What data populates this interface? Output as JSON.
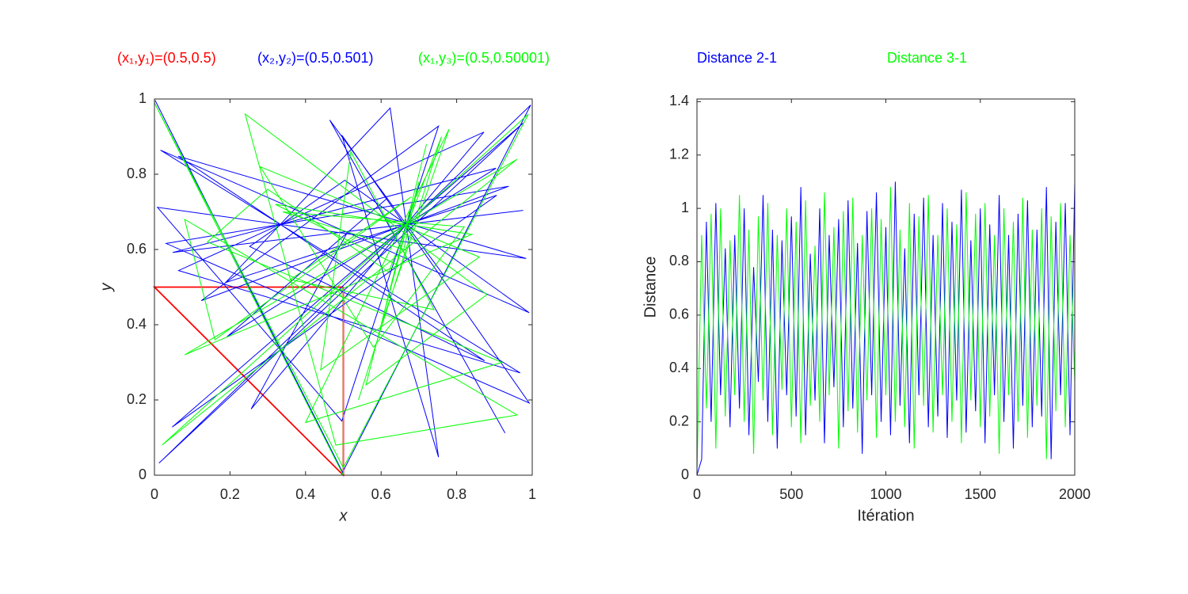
{
  "chart_data": [
    {
      "type": "line",
      "xlabel": "x",
      "ylabel": "y",
      "xlim": [
        0,
        1
      ],
      "ylim": [
        0,
        1
      ],
      "xticks": [
        0,
        0.2,
        0.4,
        0.6,
        0.8,
        1
      ],
      "yticks": [
        0,
        0.2,
        0.4,
        0.6,
        0.8,
        1
      ],
      "series": [
        {
          "name": "(x₁,y₁)=(0.5,0.5)",
          "color": "#ff0000",
          "x": [
            0.5,
            0.5,
            0,
            0.5
          ],
          "values": [
            0.5,
            0,
            0.5,
            0.5
          ]
        },
        {
          "name": "(x₂,y₂)=(0.5,0.501)",
          "color": "#0000ff",
          "x": [
            0.5,
            0.5,
            0.002,
            0.498,
            0.996,
            0.012,
            0.976,
            0.047,
            0.906,
            0.188,
            0.624,
            0.752,
            0.496,
            0.992,
            0.031,
            0.938,
            0.124,
            0.752,
            0.496,
            0.008,
            0.984,
            0.063,
            0.874,
            0.252,
            0.504,
            0.992,
            0.016,
            0.968,
            0.064,
            0.872,
            0.256,
            0.512,
            0.976,
            0.048,
            0.904,
            0.192,
            0.616,
            0.768,
            0.464,
            0.928
          ],
          "values": [
            0.501,
            0.002,
            0.996,
            0.008,
            0.984,
            0.032,
            0.936,
            0.128,
            0.744,
            0.512,
            0.976,
            0.048,
            0.904,
            0.192,
            0.616,
            0.768,
            0.464,
            0.928,
            0.144,
            0.712,
            0.576,
            0.848,
            0.304,
            0.608,
            0.784,
            0.432,
            0.864,
            0.272,
            0.544,
            0.912,
            0.176,
            0.648,
            0.704,
            0.592,
            0.816,
            0.368,
            0.736,
            0.528,
            0.944,
            0.112
          ]
        },
        {
          "name": "(x₁,y₃)=(0.5,0.50001)",
          "color": "#00ff00",
          "x": [
            0.5,
            0.5,
            2e-05,
            0.5,
            0.99,
            0.02,
            0.96,
            0.08,
            0.84,
            0.32,
            0.64,
            0.72,
            0.56,
            0.88,
            0.24,
            0.48,
            0.96,
            0.08,
            0.16,
            0.68,
            0.36,
            0.74,
            0.52,
            0.44,
            0.86,
            0.28,
            0.58,
            0.82,
            0.34,
            0.66,
            0.7,
            0.6,
            0.78,
            0.4,
            0.92,
            0.14,
            0.3,
            0.62,
            0.76,
            0.54
          ],
          "values": [
            0.50001,
            2e-05,
            0.99,
            0.02,
            0.96,
            0.08,
            0.84,
            0.32,
            0.64,
            0.72,
            0.56,
            0.88,
            0.24,
            0.48,
            0.96,
            0.08,
            0.16,
            0.68,
            0.36,
            0.74,
            0.52,
            0.44,
            0.86,
            0.28,
            0.58,
            0.82,
            0.34,
            0.66,
            0.7,
            0.6,
            0.78,
            0.4,
            0.92,
            0.14,
            0.3,
            0.62,
            0.76,
            0.54,
            0.9,
            0.2
          ]
        }
      ]
    },
    {
      "type": "line",
      "xlabel": "Itération",
      "ylabel": "Distance",
      "xlim": [
        0,
        2000
      ],
      "ylim": [
        0,
        1.41
      ],
      "xticks": [
        0,
        500,
        1000,
        1500,
        2000
      ],
      "yticks": [
        0,
        0.2,
        0.4,
        0.6,
        0.8,
        1,
        1.2,
        1.4
      ],
      "x": [
        0,
        25,
        50,
        75,
        100,
        125,
        150,
        175,
        200,
        225,
        250,
        275,
        300,
        325,
        350,
        375,
        400,
        425,
        450,
        475,
        500,
        525,
        550,
        575,
        600,
        625,
        650,
        675,
        700,
        725,
        750,
        775,
        800,
        825,
        850,
        875,
        900,
        925,
        950,
        975,
        1000,
        1025,
        1050,
        1075,
        1100,
        1125,
        1150,
        1175,
        1200,
        1225,
        1250,
        1275,
        1300,
        1325,
        1350,
        1375,
        1400,
        1425,
        1450,
        1475,
        1500,
        1525,
        1550,
        1575,
        1600,
        1625,
        1650,
        1675,
        1700,
        1725,
        1750,
        1775,
        1800,
        1825,
        1850,
        1875,
        1900,
        1925,
        1950,
        1975,
        2000
      ],
      "series": [
        {
          "name": "Distance 2-1",
          "color": "#0000ff",
          "values": [
            0,
            0.06,
            0.95,
            0.2,
            1.02,
            0.3,
            0.85,
            0.18,
            0.9,
            0.25,
            1.0,
            0.15,
            0.78,
            0.35,
            1.05,
            0.2,
            0.92,
            0.1,
            0.88,
            0.3,
            0.97,
            0.22,
            1.08,
            0.15,
            0.83,
            0.28,
            1.0,
            0.12,
            0.9,
            0.33,
            0.96,
            0.18,
            1.03,
            0.25,
            0.87,
            0.08,
            0.99,
            0.3,
            1.06,
            0.2,
            0.93,
            0.15,
            1.1,
            0.26,
            0.85,
            0.12,
            0.98,
            0.3,
            1.04,
            0.18,
            0.9,
            0.22,
            1.02,
            0.14,
            0.95,
            0.28,
            1.07,
            0.16,
            0.88,
            0.24,
            1.0,
            0.12,
            0.94,
            0.3,
            1.05,
            0.2,
            0.9,
            0.1,
            0.98,
            0.26,
            1.03,
            0.18,
            0.92,
            0.22,
            1.08,
            0.06,
            0.95,
            0.3,
            1.02,
            0.15,
            1.1
          ]
        },
        {
          "name": "Distance 3-1",
          "color": "#00ff00",
          "values": [
            0,
            0.9,
            0.25,
            0.98,
            0.1,
            1.0,
            0.22,
            0.88,
            0.3,
            1.05,
            0.2,
            0.92,
            0.08,
            0.97,
            0.28,
            1.02,
            0.15,
            0.9,
            0.32,
            1.0,
            0.18,
            0.95,
            0.12,
            1.03,
            0.26,
            0.86,
            0.2,
            1.06,
            0.3,
            0.93,
            0.1,
            0.99,
            0.24,
            1.04,
            0.16,
            0.9,
            0.28,
            1.0,
            0.14,
            0.96,
            0.3,
            1.08,
            0.2,
            0.92,
            0.18,
            1.02,
            0.1,
            0.97,
            0.26,
            1.05,
            0.16,
            0.9,
            0.3,
            1.0,
            0.2,
            0.94,
            0.12,
            1.06,
            0.28,
            0.98,
            0.18,
            1.02,
            0.22,
            0.9,
            0.08,
            1.0,
            0.3,
            0.95,
            0.2,
            1.04,
            0.14,
            0.92,
            0.26,
            1.0,
            0.06,
            0.97,
            0.24,
            1.02,
            0.18,
            0.9,
            0.35
          ]
        }
      ]
    }
  ]
}
